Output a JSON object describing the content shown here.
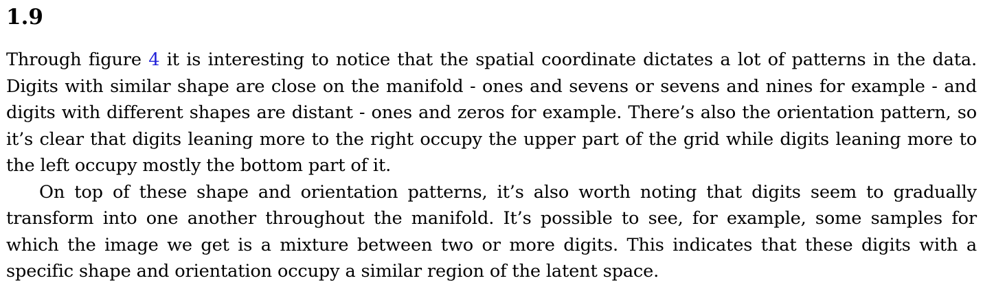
{
  "section": {
    "number": "1.9"
  },
  "paragraphs": [
    {
      "before_ref": "Through figure ",
      "ref": "4",
      "after_ref": " it is interesting to notice that the spatial coordinate dictates a lot of patterns in the data. Digits with similar shape are close on the manifold - ones and sevens or sevens and nines for example - and digits with different shapes are distant - ones and zeros for example. There’s also the orientation pattern, so it’s clear that digits leaning more to the right occupy the upper part of the grid while digits leaning more to the left occupy mostly the bottom part of it."
    },
    {
      "text": "On top of these shape and orientation patterns, it’s also worth noting that digits seem to gradually transform into one another throughout the manifold. It’s possible to see, for example, some samples for which the image we get is a mixture between two or more digits. This indicates that these digits with a specific shape and orientation occupy a similar region of the latent space."
    }
  ],
  "colors": {
    "text": "#000000",
    "link": "#1f1fd8",
    "background": "#ffffff"
  }
}
